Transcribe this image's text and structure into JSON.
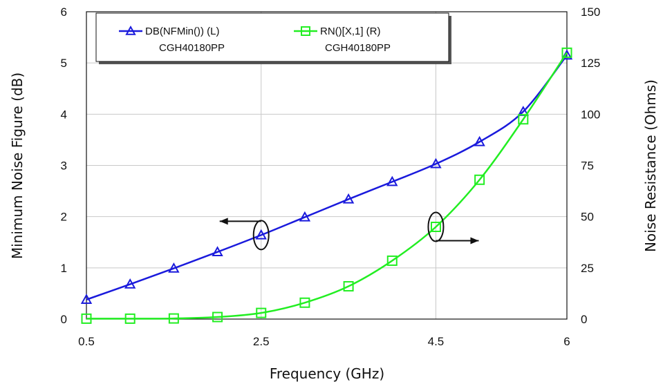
{
  "chart_data": {
    "type": "line",
    "xlabel": "Frequency (GHz)",
    "ylabel_left": "Minimum Noise Figure (dB)",
    "ylabel_right": "Noise Resistance (Ohms)",
    "xlim": [
      0.5,
      6
    ],
    "ylim_left": [
      0,
      6
    ],
    "ylim_right": [
      0,
      150
    ],
    "x_ticks": [
      "0.5",
      "2.5",
      "4.5",
      "6"
    ],
    "x_tick_values": [
      0.5,
      2.5,
      4.5,
      6
    ],
    "y_left_ticks": [
      "0",
      "1",
      "2",
      "3",
      "4",
      "5",
      "6"
    ],
    "y_right_ticks": [
      "0",
      "25",
      "50",
      "75",
      "100",
      "125",
      "150"
    ],
    "grid": true,
    "legend_position": "top-left",
    "series": [
      {
        "name": "DB(NFMin()) (L)",
        "sublabel": "CGH40180PP",
        "axis": "left",
        "color": "#1a1adc",
        "marker": "triangle",
        "x": [
          0.5,
          1.0,
          1.5,
          2.0,
          2.5,
          3.0,
          3.5,
          4.0,
          4.5,
          5.0,
          5.5,
          6.0
        ],
        "values": [
          0.38,
          0.68,
          0.99,
          1.31,
          1.64,
          1.99,
          2.34,
          2.68,
          3.03,
          3.46,
          4.05,
          5.15
        ]
      },
      {
        "name": "RN()[X,1] (R)",
        "sublabel": "CGH40180PP",
        "axis": "right",
        "color": "#22ee22",
        "marker": "square",
        "x": [
          0.5,
          1.0,
          1.5,
          2.0,
          2.5,
          3.0,
          3.5,
          4.0,
          4.5,
          5.0,
          5.5,
          6.0
        ],
        "values": [
          0.2,
          0.2,
          0.3,
          1.0,
          3.0,
          8.0,
          16.0,
          28.5,
          45.0,
          68.0,
          97.5,
          130.0
        ]
      }
    ],
    "annotations": [
      {
        "target": "left",
        "marker_x": 2.5,
        "marker_value": 1.64,
        "arrow_direction": "left"
      },
      {
        "target": "right",
        "marker_x": 4.5,
        "marker_value": 45.0,
        "arrow_direction": "right"
      }
    ]
  }
}
